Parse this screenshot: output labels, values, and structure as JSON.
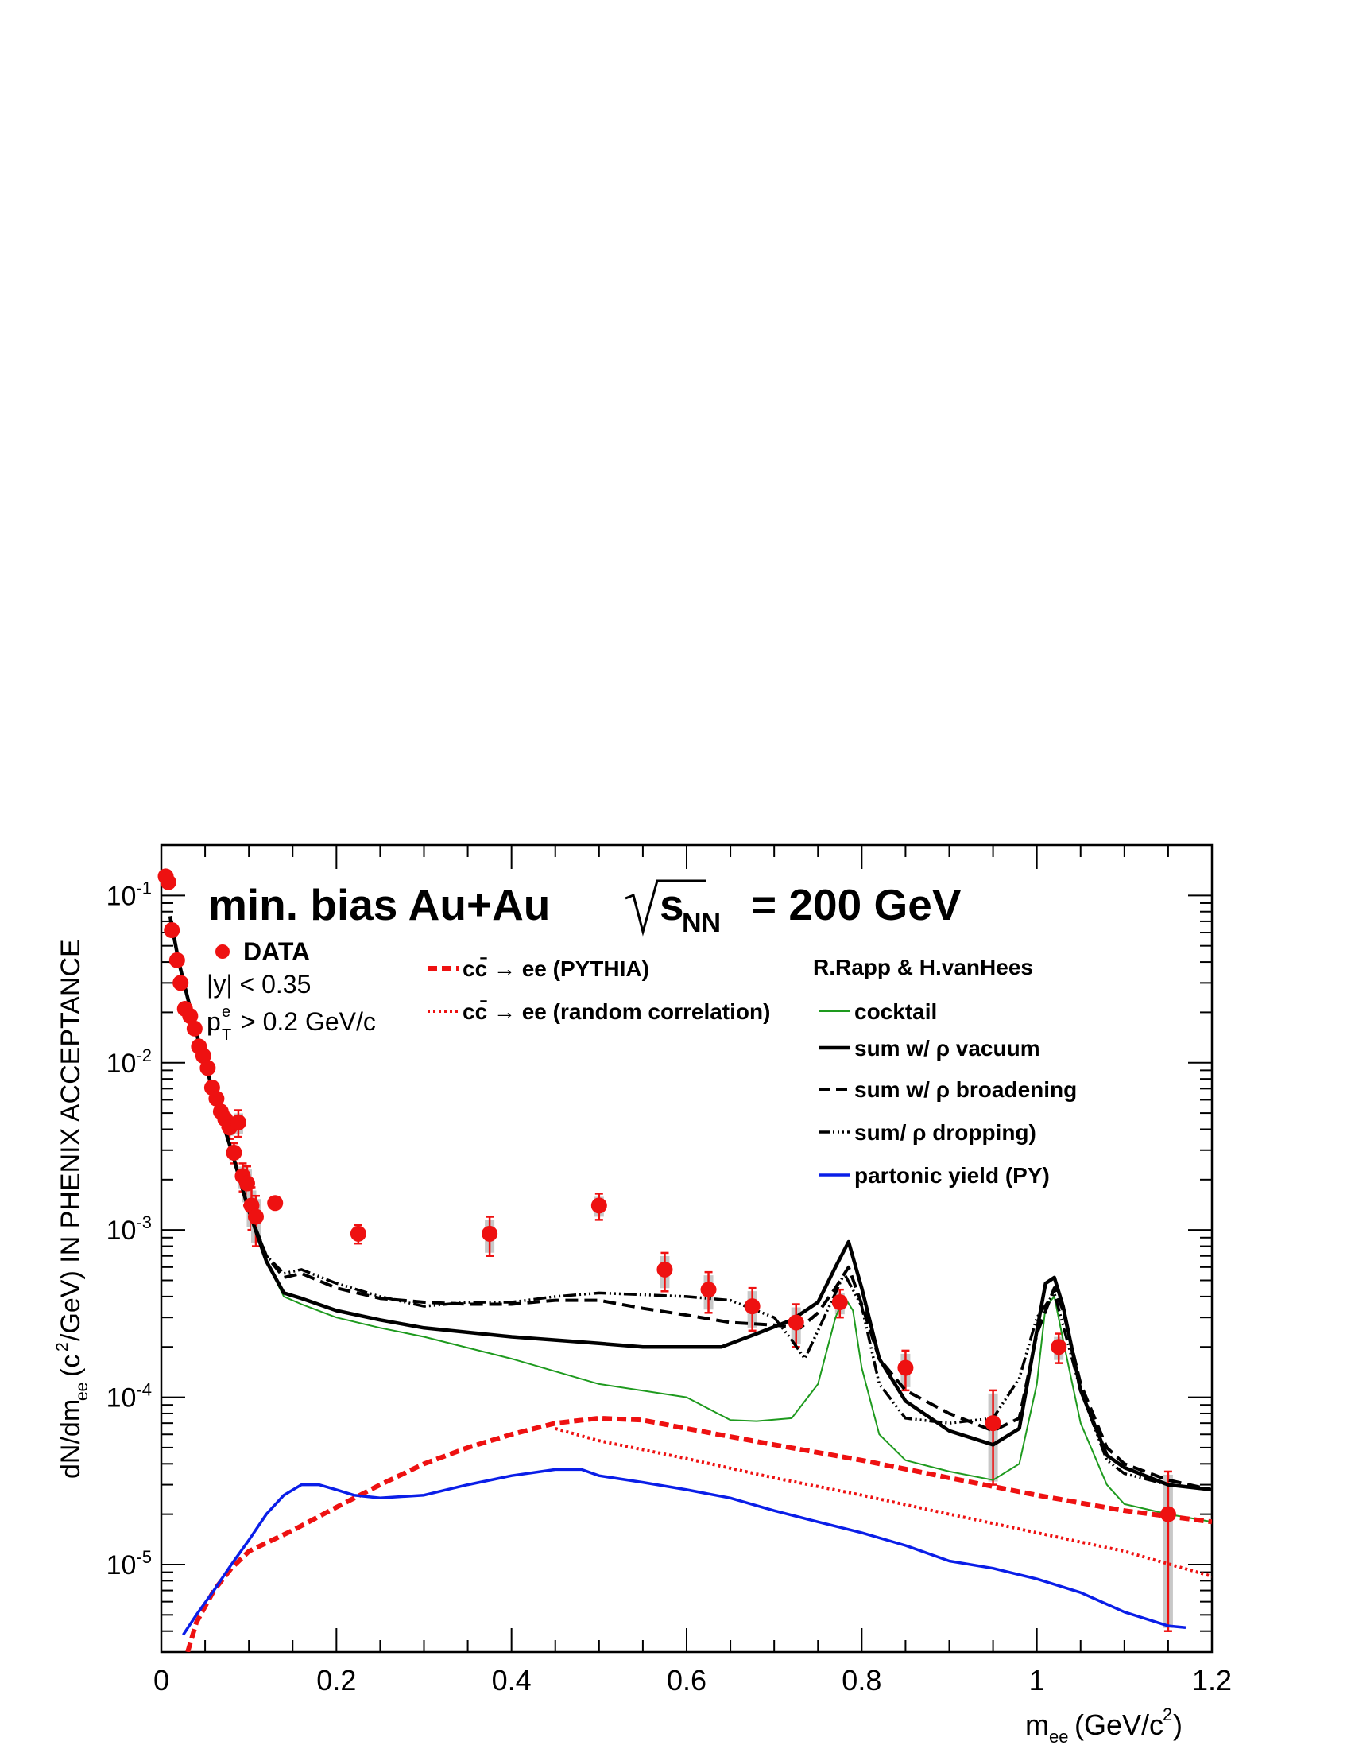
{
  "chart_data": {
    "type": "line",
    "title": "min. bias Au+Au",
    "title_energy": "= 200 GeV",
    "xlabel": "m_ee (GeV/c^2)",
    "ylabel": "dN/dm_ee (c^2/GeV) IN PHENIX ACCEPTANCE",
    "xlim": [
      0,
      1.2
    ],
    "ylim": [
      3e-06,
      0.2
    ],
    "yscale": "log",
    "x_ticks": [
      "0",
      "0.2",
      "0.4",
      "0.6",
      "0.8",
      "1",
      "1.2"
    ],
    "y_ticks": [
      "10^-5",
      "10^-4",
      "10^-3",
      "10^-2",
      "10^-1"
    ],
    "grid": false,
    "annotations": {
      "data_label": "DATA",
      "rapidity_cut": "|y| < 0.35",
      "pt_cut": "> 0.2 GeV/c",
      "model_header": "R.Rapp & H.vanHees"
    },
    "legend_placement": "top",
    "data_points": [
      {
        "x": 0.005,
        "y": 0.13,
        "err": 0
      },
      {
        "x": 0.008,
        "y": 0.12,
        "err": 0
      },
      {
        "x": 0.012,
        "y": 0.062,
        "err": 0
      },
      {
        "x": 0.018,
        "y": 0.041,
        "err": 0
      },
      {
        "x": 0.022,
        "y": 0.03,
        "err": 0
      },
      {
        "x": 0.027,
        "y": 0.021,
        "err": 0
      },
      {
        "x": 0.033,
        "y": 0.019,
        "err": 0
      },
      {
        "x": 0.038,
        "y": 0.016,
        "err": 0
      },
      {
        "x": 0.043,
        "y": 0.0125,
        "err": 0
      },
      {
        "x": 0.048,
        "y": 0.011,
        "err": 0
      },
      {
        "x": 0.053,
        "y": 0.0093,
        "err": 0
      },
      {
        "x": 0.058,
        "y": 0.0071,
        "err": 0
      },
      {
        "x": 0.063,
        "y": 0.0061,
        "err": 0
      },
      {
        "x": 0.068,
        "y": 0.0051,
        "err": 0
      },
      {
        "x": 0.073,
        "y": 0.0046,
        "err": 0.0005
      },
      {
        "x": 0.078,
        "y": 0.0041,
        "err": 0.0006
      },
      {
        "x": 0.083,
        "y": 0.0029,
        "err": 0.0004
      },
      {
        "x": 0.088,
        "y": 0.0044,
        "err": 0.0008
      },
      {
        "x": 0.093,
        "y": 0.0021,
        "err": 0.0004
      },
      {
        "x": 0.098,
        "y": 0.0019,
        "err": 0.0005
      },
      {
        "x": 0.103,
        "y": 0.0014,
        "err": 0.0004
      },
      {
        "x": 0.108,
        "y": 0.0012,
        "err": 0.0004
      },
      {
        "x": 0.13,
        "y": 0.00145,
        "err": 0.0001
      },
      {
        "x": 0.225,
        "y": 0.00095,
        "err": 0.00012
      },
      {
        "x": 0.375,
        "y": 0.00095,
        "err": 0.00025
      },
      {
        "x": 0.5,
        "y": 0.0014,
        "err": 0.00025
      },
      {
        "x": 0.575,
        "y": 0.00058,
        "err": 0.00015
      },
      {
        "x": 0.625,
        "y": 0.00044,
        "err": 0.00012
      },
      {
        "x": 0.675,
        "y": 0.00035,
        "err": 0.0001
      },
      {
        "x": 0.725,
        "y": 0.00028,
        "err": 8e-05
      },
      {
        "x": 0.775,
        "y": 0.00037,
        "err": 7e-05
      },
      {
        "x": 0.85,
        "y": 0.00015,
        "err": 4e-05
      },
      {
        "x": 0.95,
        "y": 7e-05,
        "err": 4e-05
      },
      {
        "x": 1.025,
        "y": 0.0002,
        "err": 4e-05
      },
      {
        "x": 1.15,
        "y": 2e-05,
        "err": 1.6e-05
      }
    ],
    "series": [
      {
        "name": "cc̄ → ee (PYTHIA)",
        "color": "#ee1111",
        "style": "dashed-thick",
        "x": [
          0.03,
          0.04,
          0.06,
          0.08,
          0.1,
          0.15,
          0.2,
          0.25,
          0.3,
          0.35,
          0.4,
          0.45,
          0.5,
          0.55,
          0.6,
          0.7,
          0.8,
          0.9,
          1.0,
          1.1,
          1.2
        ],
        "y": [
          3e-06,
          4.5e-06,
          7e-06,
          9.5e-06,
          1.2e-05,
          1.6e-05,
          2.2e-05,
          3e-05,
          4e-05,
          5e-05,
          6e-05,
          7e-05,
          7.5e-05,
          7.3e-05,
          6.5e-05,
          5.2e-05,
          4.2e-05,
          3.3e-05,
          2.6e-05,
          2.1e-05,
          1.8e-05
        ]
      },
      {
        "name": "cc̄ → ee (random correlation)",
        "color": "#ee1111",
        "style": "dotted",
        "x": [
          0.45,
          0.5,
          0.6,
          0.7,
          0.8,
          0.9,
          1.0,
          1.1,
          1.2
        ],
        "y": [
          6.5e-05,
          5.5e-05,
          4.3e-05,
          3.3e-05,
          2.6e-05,
          2e-05,
          1.55e-05,
          1.2e-05,
          8.5e-06
        ]
      },
      {
        "name": "cocktail",
        "color": "#1e9a1e",
        "style": "thin",
        "x": [
          0.01,
          0.02,
          0.04,
          0.06,
          0.08,
          0.1,
          0.12,
          0.14,
          0.16,
          0.2,
          0.25,
          0.3,
          0.4,
          0.5,
          0.6,
          0.65,
          0.68,
          0.72,
          0.75,
          0.77,
          0.78,
          0.79,
          0.8,
          0.82,
          0.85,
          0.9,
          0.95,
          0.98,
          1.0,
          1.01,
          1.02,
          1.03,
          1.05,
          1.08,
          1.1,
          1.15,
          1.2
        ],
        "y": [
          0.075,
          0.04,
          0.015,
          0.0065,
          0.003,
          0.0013,
          0.00065,
          0.0004,
          0.00036,
          0.0003,
          0.00026,
          0.00023,
          0.00017,
          0.00012,
          0.0001,
          7.3e-05,
          7.2e-05,
          7.5e-05,
          0.00012,
          0.0003,
          0.0004,
          0.00033,
          0.00015,
          6e-05,
          4.2e-05,
          3.6e-05,
          3.2e-05,
          4e-05,
          0.00012,
          0.00035,
          0.0004,
          0.00022,
          7e-05,
          3e-05,
          2.3e-05,
          2e-05,
          1.8e-05
        ]
      },
      {
        "name": "sum w/ ρ vacuum",
        "color": "#000000",
        "style": "solid-thick",
        "x": [
          0.01,
          0.02,
          0.04,
          0.06,
          0.08,
          0.1,
          0.12,
          0.14,
          0.16,
          0.2,
          0.25,
          0.3,
          0.4,
          0.5,
          0.55,
          0.6,
          0.64,
          0.68,
          0.72,
          0.75,
          0.77,
          0.785,
          0.8,
          0.82,
          0.85,
          0.9,
          0.95,
          0.98,
          1.0,
          1.01,
          1.02,
          1.03,
          1.05,
          1.08,
          1.1,
          1.15,
          1.2
        ],
        "y": [
          0.075,
          0.04,
          0.015,
          0.0065,
          0.003,
          0.0013,
          0.00065,
          0.00042,
          0.00039,
          0.00033,
          0.00029,
          0.00026,
          0.00023,
          0.00021,
          0.0002,
          0.0002,
          0.0002,
          0.00024,
          0.00029,
          0.00037,
          0.0006,
          0.00085,
          0.00045,
          0.00017,
          9.5e-05,
          6.3e-05,
          5.2e-05,
          6.5e-05,
          0.00025,
          0.00048,
          0.00052,
          0.00035,
          0.00011,
          4.5e-05,
          3.8e-05,
          3e-05,
          2.8e-05
        ]
      },
      {
        "name": "sum w/ ρ broadening",
        "color": "#000000",
        "style": "dashed",
        "x": [
          0.01,
          0.02,
          0.04,
          0.06,
          0.08,
          0.1,
          0.12,
          0.14,
          0.16,
          0.2,
          0.25,
          0.3,
          0.35,
          0.4,
          0.45,
          0.5,
          0.55,
          0.6,
          0.65,
          0.7,
          0.73,
          0.75,
          0.77,
          0.785,
          0.8,
          0.82,
          0.85,
          0.9,
          0.95,
          0.98,
          1.0,
          1.02,
          1.03,
          1.05,
          1.08,
          1.1,
          1.15,
          1.2
        ],
        "y": [
          0.075,
          0.04,
          0.015,
          0.0065,
          0.003,
          0.0013,
          0.0007,
          0.00052,
          0.00055,
          0.00045,
          0.00039,
          0.00037,
          0.00036,
          0.00036,
          0.00038,
          0.00038,
          0.00034,
          0.00031,
          0.00028,
          0.00027,
          0.00026,
          0.00032,
          0.00045,
          0.0006,
          0.00036,
          0.00017,
          0.00011,
          8e-05,
          6.3e-05,
          7.5e-05,
          0.00024,
          0.00045,
          0.00033,
          0.00012,
          5e-05,
          4e-05,
          3.2e-05,
          2.8e-05
        ]
      },
      {
        "name": "sum/ ρ dropping)",
        "color": "#000000",
        "style": "dash-dot",
        "x": [
          0.01,
          0.02,
          0.04,
          0.06,
          0.08,
          0.1,
          0.12,
          0.14,
          0.16,
          0.2,
          0.25,
          0.3,
          0.35,
          0.4,
          0.45,
          0.5,
          0.55,
          0.6,
          0.65,
          0.7,
          0.72,
          0.735,
          0.75,
          0.77,
          0.78,
          0.8,
          0.82,
          0.85,
          0.9,
          0.95,
          0.98,
          1.0,
          1.02,
          1.05,
          1.08,
          1.1,
          1.15,
          1.2
        ],
        "y": [
          0.075,
          0.04,
          0.015,
          0.0065,
          0.003,
          0.0013,
          0.0007,
          0.00055,
          0.00058,
          0.00048,
          0.0004,
          0.00035,
          0.00037,
          0.00037,
          0.0004,
          0.00042,
          0.00041,
          0.0004,
          0.00038,
          0.0003,
          0.00022,
          0.00017,
          0.00025,
          0.00042,
          0.00055,
          0.00035,
          0.00012,
          7.5e-05,
          7e-05,
          7.5e-05,
          0.00013,
          0.0003,
          0.00042,
          0.00011,
          4.2e-05,
          3.5e-05,
          3e-05,
          2.8e-05
        ]
      },
      {
        "name": "partonic yield (PY)",
        "color": "#0a1ee8",
        "style": "solid",
        "x": [
          0.025,
          0.04,
          0.06,
          0.08,
          0.1,
          0.12,
          0.14,
          0.16,
          0.18,
          0.2,
          0.22,
          0.25,
          0.3,
          0.35,
          0.4,
          0.45,
          0.48,
          0.5,
          0.55,
          0.6,
          0.65,
          0.7,
          0.75,
          0.8,
          0.85,
          0.9,
          0.95,
          1.0,
          1.05,
          1.1,
          1.15,
          1.17
        ],
        "y": [
          3.8e-06,
          5e-06,
          7e-06,
          1e-05,
          1.4e-05,
          2e-05,
          2.6e-05,
          3e-05,
          3e-05,
          2.8e-05,
          2.6e-05,
          2.5e-05,
          2.6e-05,
          3e-05,
          3.4e-05,
          3.7e-05,
          3.7e-05,
          3.4e-05,
          3.1e-05,
          2.8e-05,
          2.5e-05,
          2.1e-05,
          1.8e-05,
          1.55e-05,
          1.3e-05,
          1.05e-05,
          9.5e-06,
          8.2e-06,
          6.8e-06,
          5.2e-06,
          4.3e-06,
          4.2e-06
        ]
      }
    ]
  }
}
